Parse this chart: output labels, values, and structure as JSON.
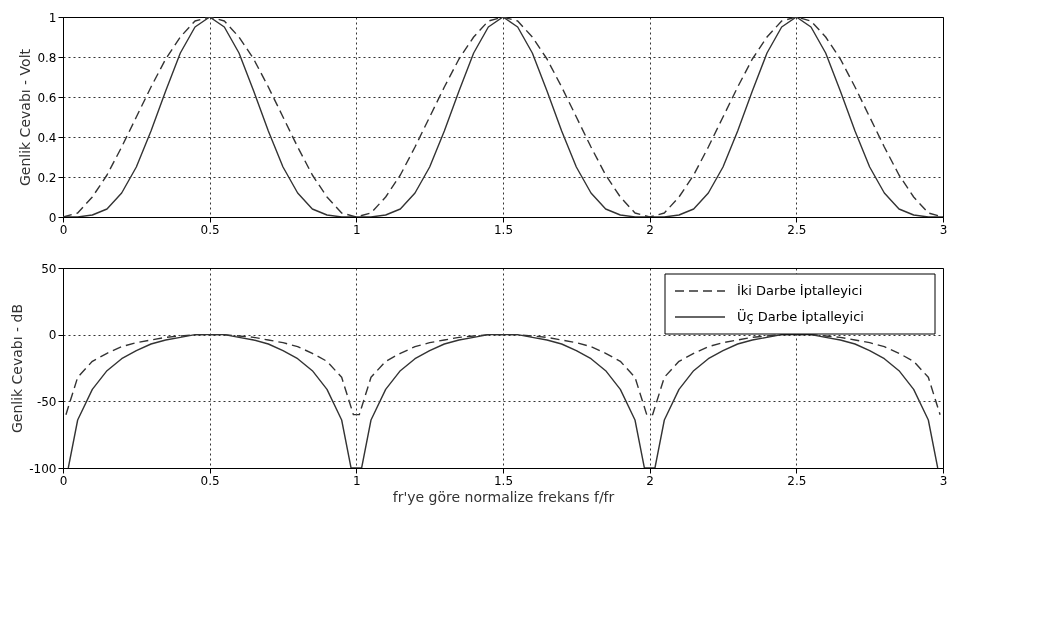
{
  "chart_data": [
    {
      "type": "line",
      "ylabel": "Genlik Cevabı - Volt",
      "xlim": [
        0,
        3
      ],
      "ylim": [
        0,
        1
      ],
      "xticks": [
        0,
        0.5,
        1,
        1.5,
        2,
        2.5,
        3
      ],
      "yticks": [
        0,
        0.2,
        0.4,
        0.6,
        0.8,
        1
      ],
      "grid": true,
      "series": [
        {
          "color": "#333333",
          "line_style": "dashed",
          "x": [
            0,
            0.05,
            0.1,
            0.15,
            0.2,
            0.25,
            0.3,
            0.35,
            0.4,
            0.45,
            0.5,
            0.55,
            0.6,
            0.65,
            0.7,
            0.75,
            0.8,
            0.85,
            0.9,
            0.95,
            1,
            1.05,
            1.1,
            1.15,
            1.2,
            1.25,
            1.3,
            1.35,
            1.4,
            1.45,
            1.5,
            1.55,
            1.6,
            1.65,
            1.7,
            1.75,
            1.8,
            1.85,
            1.9,
            1.95,
            2,
            2.05,
            2.1,
            2.15,
            2.2,
            2.25,
            2.3,
            2.35,
            2.4,
            2.45,
            2.5,
            2.55,
            2.6,
            2.65,
            2.7,
            2.75,
            2.8,
            2.85,
            2.9,
            2.95,
            3
          ],
          "values": [
            0,
            0.02,
            0.1,
            0.21,
            0.35,
            0.5,
            0.65,
            0.79,
            0.9,
            0.98,
            1,
            0.98,
            0.9,
            0.79,
            0.65,
            0.5,
            0.35,
            0.21,
            0.1,
            0.02,
            0,
            0.02,
            0.1,
            0.21,
            0.35,
            0.5,
            0.65,
            0.79,
            0.9,
            0.98,
            1,
            0.98,
            0.9,
            0.79,
            0.65,
            0.5,
            0.35,
            0.21,
            0.1,
            0.02,
            0,
            0.02,
            0.1,
            0.21,
            0.35,
            0.5,
            0.65,
            0.79,
            0.9,
            0.98,
            1,
            0.98,
            0.9,
            0.79,
            0.65,
            0.5,
            0.35,
            0.21,
            0.1,
            0.02,
            0
          ]
        },
        {
          "color": "#333333",
          "line_style": "solid",
          "x": [
            0,
            0.05,
            0.1,
            0.15,
            0.2,
            0.25,
            0.3,
            0.35,
            0.4,
            0.45,
            0.5,
            0.55,
            0.6,
            0.65,
            0.7,
            0.75,
            0.8,
            0.85,
            0.9,
            0.95,
            1,
            1.05,
            1.1,
            1.15,
            1.2,
            1.25,
            1.3,
            1.35,
            1.4,
            1.45,
            1.5,
            1.55,
            1.6,
            1.65,
            1.7,
            1.75,
            1.8,
            1.85,
            1.9,
            1.95,
            2,
            2.05,
            2.1,
            2.15,
            2.2,
            2.25,
            2.3,
            2.35,
            2.4,
            2.45,
            2.5,
            2.55,
            2.6,
            2.65,
            2.7,
            2.75,
            2.8,
            2.85,
            2.9,
            2.95,
            3
          ],
          "values": [
            0,
            0,
            0.01,
            0.04,
            0.12,
            0.25,
            0.43,
            0.63,
            0.82,
            0.95,
            1,
            0.95,
            0.82,
            0.63,
            0.43,
            0.25,
            0.12,
            0.04,
            0.01,
            0,
            0,
            0,
            0.01,
            0.04,
            0.12,
            0.25,
            0.43,
            0.63,
            0.82,
            0.95,
            1,
            0.95,
            0.82,
            0.63,
            0.43,
            0.25,
            0.12,
            0.04,
            0.01,
            0,
            0,
            0,
            0.01,
            0.04,
            0.12,
            0.25,
            0.43,
            0.63,
            0.82,
            0.95,
            1,
            0.95,
            0.82,
            0.63,
            0.43,
            0.25,
            0.12,
            0.04,
            0.01,
            0,
            0
          ]
        }
      ]
    },
    {
      "type": "line",
      "ylabel": "Genlik Cevabı - dB",
      "xlabel": "fr'ye göre normalize frekans f/fr",
      "xlim": [
        0,
        3
      ],
      "ylim": [
        -100,
        50
      ],
      "xticks": [
        0,
        0.5,
        1,
        1.5,
        2,
        2.5,
        3
      ],
      "yticks": [
        -100,
        -50,
        0,
        50
      ],
      "grid": true,
      "legend": "top right",
      "series": [
        {
          "name": "İki Darbe İptalleyici",
          "color": "#333333",
          "line_style": "dashed",
          "x": [
            0.01,
            0.05,
            0.1,
            0.15,
            0.2,
            0.25,
            0.3,
            0.35,
            0.4,
            0.45,
            0.5,
            0.55,
            0.6,
            0.65,
            0.7,
            0.75,
            0.8,
            0.85,
            0.9,
            0.95,
            0.99,
            1.01,
            1.05,
            1.1,
            1.15,
            1.2,
            1.25,
            1.3,
            1.35,
            1.4,
            1.45,
            1.5,
            1.55,
            1.6,
            1.65,
            1.7,
            1.75,
            1.8,
            1.85,
            1.9,
            1.95,
            1.99,
            2.01,
            2.05,
            2.1,
            2.15,
            2.2,
            2.25,
            2.3,
            2.35,
            2.4,
            2.45,
            2.5,
            2.55,
            2.6,
            2.65,
            2.7,
            2.75,
            2.8,
            2.85,
            2.9,
            2.95,
            2.99
          ],
          "values": [
            -60,
            -32,
            -20,
            -14,
            -9,
            -6,
            -4,
            -2,
            -1,
            0,
            0,
            0,
            -1,
            -2,
            -4,
            -6,
            -9,
            -14,
            -20,
            -32,
            -60,
            -60,
            -32,
            -20,
            -14,
            -9,
            -6,
            -4,
            -2,
            -1,
            0,
            0,
            0,
            -1,
            -2,
            -4,
            -6,
            -9,
            -14,
            -20,
            -32,
            -60,
            -60,
            -32,
            -20,
            -14,
            -9,
            -6,
            -4,
            -2,
            -1,
            0,
            0,
            0,
            -1,
            -2,
            -4,
            -6,
            -9,
            -14,
            -20,
            -32,
            -60
          ]
        },
        {
          "name": "Üç Darbe İptalleyici",
          "color": "#333333",
          "line_style": "solid",
          "x": [
            0.018,
            0.05,
            0.1,
            0.15,
            0.2,
            0.25,
            0.3,
            0.35,
            0.4,
            0.45,
            0.5,
            0.55,
            0.6,
            0.65,
            0.7,
            0.75,
            0.8,
            0.85,
            0.9,
            0.95,
            0.982,
            1.018,
            1.05,
            1.1,
            1.15,
            1.2,
            1.25,
            1.3,
            1.35,
            1.4,
            1.45,
            1.5,
            1.55,
            1.6,
            1.65,
            1.7,
            1.75,
            1.8,
            1.85,
            1.9,
            1.95,
            1.982,
            2.018,
            2.05,
            2.1,
            2.15,
            2.2,
            2.25,
            2.3,
            2.35,
            2.4,
            2.45,
            2.5,
            2.55,
            2.6,
            2.65,
            2.7,
            2.75,
            2.8,
            2.85,
            2.9,
            2.95,
            2.982
          ],
          "values": [
            -100,
            -64,
            -41,
            -27,
            -18,
            -12,
            -7,
            -4,
            -2,
            0,
            0,
            0,
            -2,
            -4,
            -7,
            -12,
            -18,
            -27,
            -41,
            -64,
            -100,
            -100,
            -64,
            -41,
            -27,
            -18,
            -12,
            -7,
            -4,
            -2,
            0,
            0,
            0,
            -2,
            -4,
            -7,
            -12,
            -18,
            -27,
            -41,
            -64,
            -100,
            -100,
            -64,
            -41,
            -27,
            -18,
            -12,
            -7,
            -4,
            -2,
            0,
            0,
            0,
            -2,
            -4,
            -7,
            -12,
            -18,
            -27,
            -41,
            -64,
            -100
          ]
        }
      ]
    }
  ]
}
